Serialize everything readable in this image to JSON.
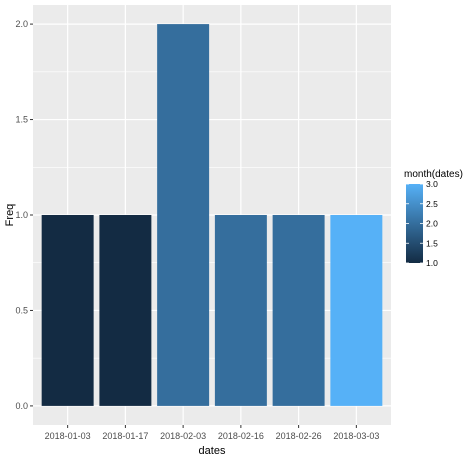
{
  "chart_data": {
    "type": "bar",
    "categories": [
      "2018-01-03",
      "2018-01-17",
      "2018-02-03",
      "2018-02-16",
      "2018-02-26",
      "2018-03-03"
    ],
    "values": [
      1,
      1,
      2,
      1,
      1,
      1
    ],
    "fill_values": [
      1,
      1,
      2,
      2,
      2,
      3
    ],
    "xlabel": "dates",
    "ylabel": "Freq",
    "ylim": [
      0,
      2
    ],
    "y_ticks": [
      "0.0",
      "0.5",
      "1.0",
      "1.5",
      "2.0"
    ],
    "y_tick_values": [
      0,
      0.5,
      1,
      1.5,
      2
    ],
    "grid": true,
    "legend": {
      "title": "month(dates)",
      "placement": "right",
      "type": "colorbar",
      "range": [
        1,
        3
      ],
      "ticks": [
        "1.0",
        "1.5",
        "2.0",
        "2.5",
        "3.0"
      ],
      "tick_values": [
        1,
        1.5,
        2,
        2.5,
        3
      ],
      "color_low": "#132B43",
      "color_high": "#56B1F7"
    },
    "panel_background": "#EBEBEB",
    "grid_color": "#FFFFFF"
  }
}
